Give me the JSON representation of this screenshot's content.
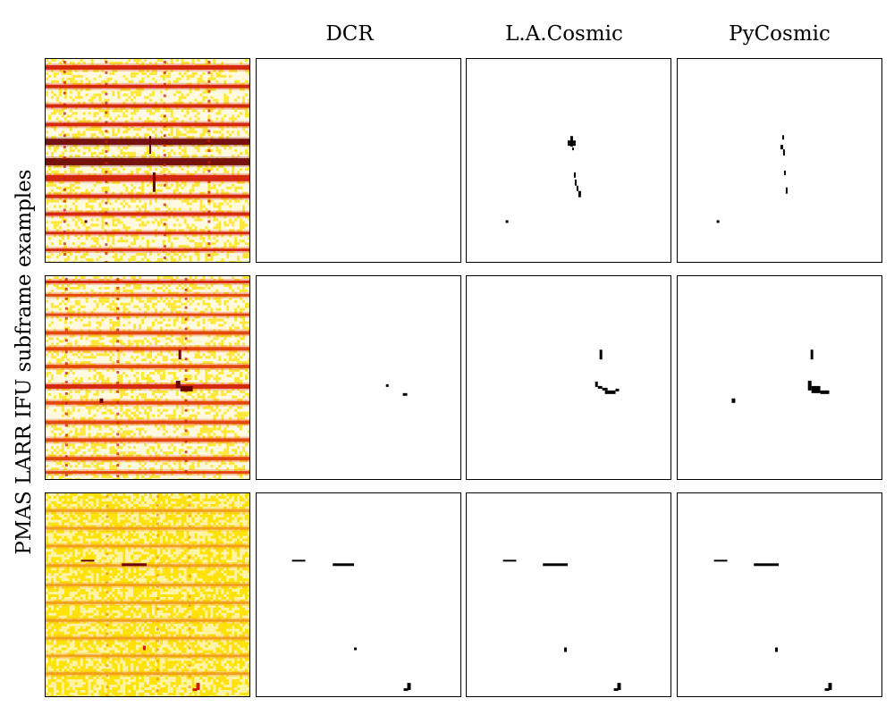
{
  "figure": {
    "y_label": "PMAS LARR IFU subframe examples",
    "columns": [
      {
        "key": "raw",
        "label": ""
      },
      {
        "key": "dcr",
        "label": "DCR"
      },
      {
        "key": "lacosmic",
        "label": "L.A.Cosmic"
      },
      {
        "key": "pycosmic",
        "label": "PyCosmic"
      }
    ]
  },
  "colors": {
    "background": "#fff9e0",
    "fiber_strong": "#d21a00",
    "fiber_dark": "#6a0000",
    "fiber_medium": "#e13a00",
    "fiber_faint": "#ef9a1a",
    "speckle_bright": "#fff7c8",
    "speckle_yellow": "#ffe20a",
    "mask": "#000000"
  }
}
